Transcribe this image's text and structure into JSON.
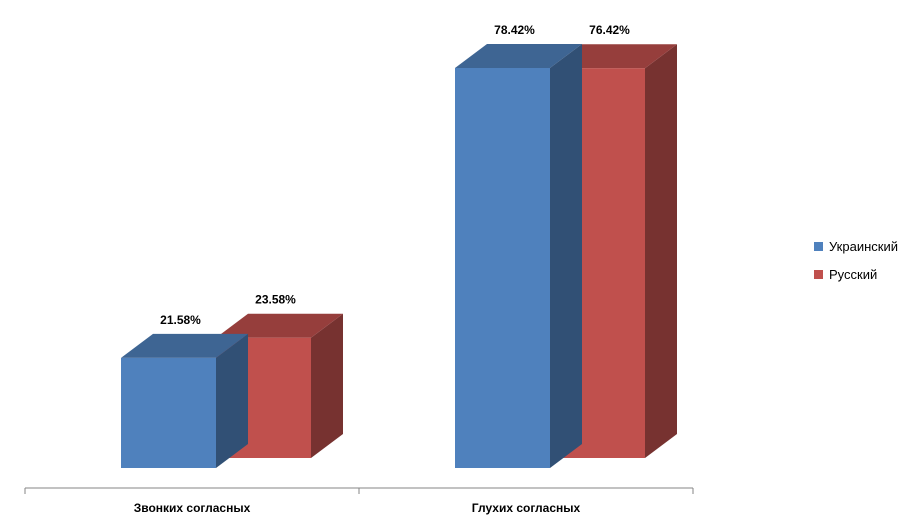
{
  "chart_data": {
    "type": "bar",
    "categories": [
      "Звонких согласных",
      "Глухих согласных"
    ],
    "series": [
      {
        "name": "Украинский",
        "values": [
          21.58,
          78.42
        ],
        "labels": [
          "21.58%",
          "78.42%"
        ],
        "color": "#4f81bd"
      },
      {
        "name": "Русский",
        "values": [
          23.58,
          76.42
        ],
        "labels": [
          "23.58%",
          "76.42%"
        ],
        "color": "#c0504d"
      }
    ],
    "value_unit": "%",
    "ylim": [
      0,
      80
    ],
    "grid": false,
    "style": "3d-clustered-column",
    "legend_position": "right"
  }
}
